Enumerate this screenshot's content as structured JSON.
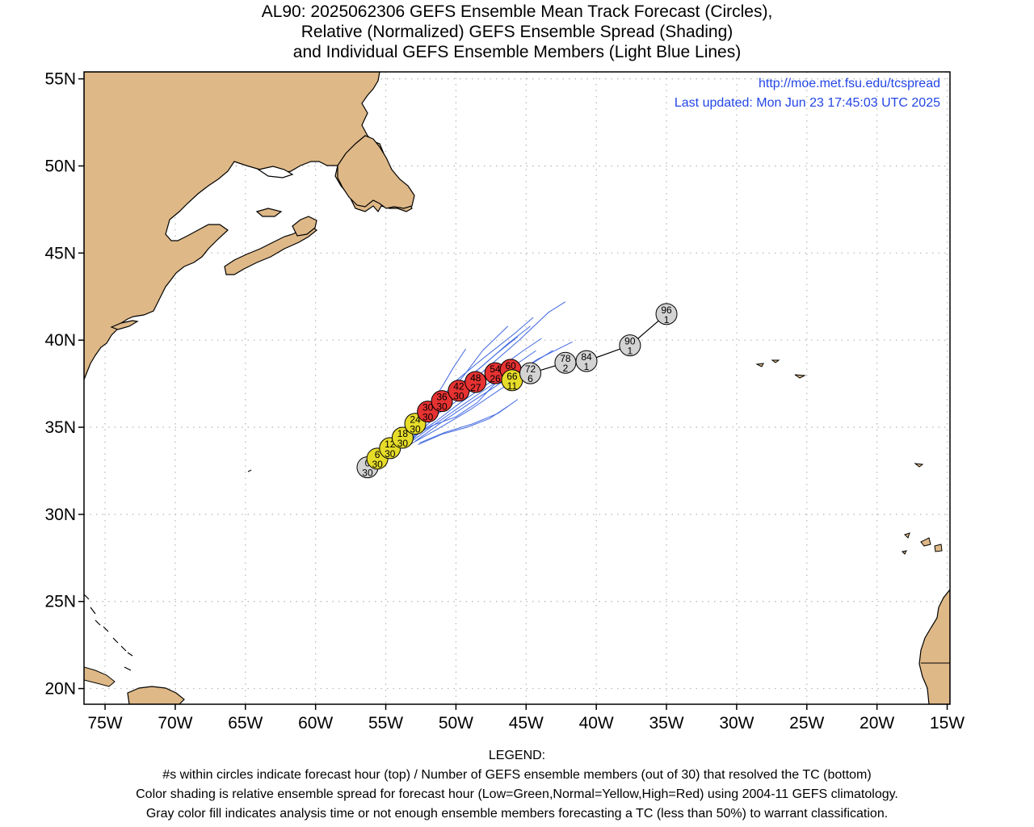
{
  "title_lines": [
    "AL90: 2025062306 GEFS Ensemble Mean Track Forecast (Circles),",
    "Relative (Normalized) GEFS Ensemble Spread (Shading)",
    "and Individual GEFS Ensemble Members (Light Blue Lines)"
  ],
  "url": "http://moe.met.fsu.edu/tcspread",
  "last_updated": "Last updated: Mon Jun 23 17:45:03 UTC 2025",
  "legend_lines": [
    "LEGEND:",
    "#s within circles indicate forecast hour (top) / Number of GEFS ensemble members (out of 30) that resolved the TC (bottom)",
    "Color shading is relative ensemble spread for forecast hour (Low=Green,Normal=Yellow,High=Red) using 2004-11 GEFS climatology.",
    "Gray color fill indicates analysis time or not enough ensemble members forecasting a TC (less than 50%) to warrant classification."
  ],
  "colors": {
    "land": "#deb887",
    "ocean": "#ffffff",
    "coast": "#000000",
    "grid": "#b4b4b4",
    "members": "#4169e1",
    "link": "#2346e6",
    "gray": "#d3d3d3",
    "yellow": "#e6dc2a",
    "red": "#e63232"
  },
  "chart_data": {
    "type": "scatter",
    "lon_ticks": [
      {
        "lon": -75,
        "label": "75W"
      },
      {
        "lon": -70,
        "label": "70W"
      },
      {
        "lon": -65,
        "label": "65W"
      },
      {
        "lon": -60,
        "label": "60W"
      },
      {
        "lon": -55,
        "label": "55W"
      },
      {
        "lon": -50,
        "label": "50W"
      },
      {
        "lon": -45,
        "label": "45W"
      },
      {
        "lon": -40,
        "label": "40W"
      },
      {
        "lon": -35,
        "label": "35W"
      },
      {
        "lon": -30,
        "label": "30W"
      },
      {
        "lon": -25,
        "label": "25W"
      },
      {
        "lon": -20,
        "label": "20W"
      },
      {
        "lon": -15,
        "label": "15W"
      }
    ],
    "lat_ticks": [
      {
        "lat": 55,
        "label": "55N"
      },
      {
        "lat": 50,
        "label": "50N"
      },
      {
        "lat": 45,
        "label": "45N"
      },
      {
        "lat": 40,
        "label": "40N"
      },
      {
        "lat": 35,
        "label": "35N"
      },
      {
        "lat": 30,
        "label": "30N"
      },
      {
        "lat": 25,
        "label": "25N"
      },
      {
        "lat": 20,
        "label": "20N"
      }
    ],
    "xlim": [
      -76.5,
      -14.8
    ],
    "ylim": [
      19.1,
      55.4
    ],
    "grid": true,
    "mean_track": [
      {
        "hour": "0",
        "members": "30",
        "lon": -56.3,
        "lat": 32.7,
        "spread": "gray"
      },
      {
        "hour": "6",
        "members": "30",
        "lon": -55.6,
        "lat": 33.2,
        "spread": "yellow"
      },
      {
        "hour": "12",
        "members": "30",
        "lon": -54.7,
        "lat": 33.8,
        "spread": "yellow"
      },
      {
        "hour": "18",
        "members": "30",
        "lon": -53.8,
        "lat": 34.4,
        "spread": "yellow"
      },
      {
        "hour": "24",
        "members": "30",
        "lon": -52.9,
        "lat": 35.2,
        "spread": "yellow"
      },
      {
        "hour": "30",
        "members": "30",
        "lon": -52.0,
        "lat": 35.9,
        "spread": "red"
      },
      {
        "hour": "36",
        "members": "30",
        "lon": -51.0,
        "lat": 36.5,
        "spread": "red"
      },
      {
        "hour": "42",
        "members": "30",
        "lon": -49.8,
        "lat": 37.1,
        "spread": "red"
      },
      {
        "hour": "48",
        "members": "27",
        "lon": -48.6,
        "lat": 37.6,
        "spread": "red"
      },
      {
        "hour": "54",
        "members": "26",
        "lon": -47.2,
        "lat": 38.1,
        "spread": "red"
      },
      {
        "hour": "60",
        "members": "",
        "lon": -46.1,
        "lat": 38.3,
        "spread": "red"
      },
      {
        "hour": "66",
        "members": "11",
        "lon": -46.0,
        "lat": 37.7,
        "spread": "yellow"
      },
      {
        "hour": "72",
        "members": "6",
        "lon": -44.7,
        "lat": 38.1,
        "spread": "gray"
      },
      {
        "hour": "78",
        "members": "2",
        "lon": -42.2,
        "lat": 38.7,
        "spread": "gray"
      },
      {
        "hour": "84",
        "members": "1",
        "lon": -40.7,
        "lat": 38.8,
        "spread": "gray"
      },
      {
        "hour": "90",
        "members": "1",
        "lon": -37.6,
        "lat": 39.7,
        "spread": "gray"
      },
      {
        "hour": "96",
        "members": "1",
        "lon": -35.0,
        "lat": 41.5,
        "spread": "gray"
      }
    ],
    "member_tracks": [
      [
        [
          -53.2,
          34.2
        ],
        [
          -51.5,
          35.6
        ],
        [
          -49.5,
          37.2
        ],
        [
          -47.5,
          38.6
        ],
        [
          -45.5,
          40.0
        ],
        [
          -43.4,
          41.6
        ],
        [
          -42.2,
          42.2
        ]
      ],
      [
        [
          -53.1,
          34.3
        ],
        [
          -51.8,
          35.9
        ],
        [
          -50.1,
          37.6
        ],
        [
          -48.0,
          39.0
        ],
        [
          -45.8,
          40.4
        ],
        [
          -44.5,
          41.3
        ]
      ],
      [
        [
          -53.5,
          34.0
        ],
        [
          -52.0,
          35.5
        ],
        [
          -50.6,
          36.9
        ],
        [
          -49.4,
          38.0
        ],
        [
          -48.1,
          39.4
        ],
        [
          -46.3,
          40.8
        ]
      ],
      [
        [
          -53.6,
          34.3
        ],
        [
          -52.3,
          35.8
        ],
        [
          -51.0,
          37.3
        ],
        [
          -50.2,
          38.4
        ],
        [
          -49.3,
          39.5
        ]
      ],
      [
        [
          -53.0,
          34.6
        ],
        [
          -51.4,
          36.0
        ],
        [
          -49.8,
          37.4
        ],
        [
          -48.0,
          38.6
        ],
        [
          -46.3,
          39.8
        ],
        [
          -44.7,
          40.8
        ]
      ],
      [
        [
          -52.9,
          34.2
        ],
        [
          -51.0,
          35.3
        ],
        [
          -48.8,
          36.5
        ],
        [
          -46.5,
          37.7
        ],
        [
          -44.2,
          38.9
        ],
        [
          -41.7,
          39.9
        ]
      ],
      [
        [
          -53.3,
          34.0
        ],
        [
          -51.3,
          34.9
        ],
        [
          -49.0,
          36.0
        ],
        [
          -46.8,
          37.2
        ],
        [
          -44.6,
          38.2
        ]
      ],
      [
        [
          -53.2,
          34.4
        ],
        [
          -51.5,
          35.3
        ],
        [
          -49.7,
          36.4
        ],
        [
          -47.9,
          37.4
        ],
        [
          -45.9,
          38.5
        ],
        [
          -44.3,
          39.4
        ]
      ],
      [
        [
          -52.6,
          34.1
        ],
        [
          -50.8,
          34.7
        ],
        [
          -48.8,
          35.2
        ],
        [
          -47.0,
          35.8
        ],
        [
          -45.6,
          36.6
        ]
      ],
      [
        [
          -53.0,
          34.5
        ],
        [
          -51.7,
          35.1
        ],
        [
          -50.0,
          35.6
        ],
        [
          -48.5,
          36.4
        ],
        [
          -47.1,
          37.6
        ],
        [
          -46.3,
          38.5
        ]
      ],
      [
        [
          -53.4,
          34.5
        ],
        [
          -52.0,
          35.4
        ],
        [
          -50.3,
          36.3
        ],
        [
          -48.6,
          37.3
        ],
        [
          -46.9,
          38.4
        ],
        [
          -45.2,
          39.4
        ],
        [
          -43.9,
          40.1
        ]
      ],
      [
        [
          -53.6,
          34.6
        ],
        [
          -52.2,
          35.6
        ],
        [
          -50.7,
          36.8
        ],
        [
          -49.0,
          37.9
        ],
        [
          -47.3,
          39.1
        ],
        [
          -45.6,
          40.2
        ]
      ],
      [
        [
          -52.7,
          34.0
        ],
        [
          -51.0,
          34.6
        ],
        [
          -49.2,
          35.0
        ],
        [
          -47.6,
          35.5
        ],
        [
          -46.3,
          36.2
        ]
      ],
      [
        [
          -53.3,
          34.1
        ],
        [
          -51.8,
          35.0
        ],
        [
          -50.2,
          35.9
        ],
        [
          -48.4,
          36.9
        ],
        [
          -46.6,
          37.9
        ],
        [
          -44.7,
          38.6
        ],
        [
          -43.1,
          39.4
        ]
      ]
    ],
    "member_track_lines": [
      [
        [
          -56.3,
          32.7
        ],
        [
          -55.6,
          33.2
        ],
        [
          -54.7,
          33.8
        ],
        [
          -53.8,
          34.4
        ],
        [
          -52.9,
          35.2
        ],
        [
          -52.0,
          35.9
        ],
        [
          -51.0,
          36.5
        ],
        [
          -49.8,
          37.1
        ],
        [
          -48.6,
          37.6
        ],
        [
          -47.2,
          38.1
        ],
        [
          -46.0,
          37.7
        ],
        [
          -44.7,
          38.1
        ],
        [
          -42.2,
          38.7
        ],
        [
          -40.7,
          38.8
        ],
        [
          -37.6,
          39.7
        ],
        [
          -35.0,
          41.5
        ]
      ]
    ]
  }
}
